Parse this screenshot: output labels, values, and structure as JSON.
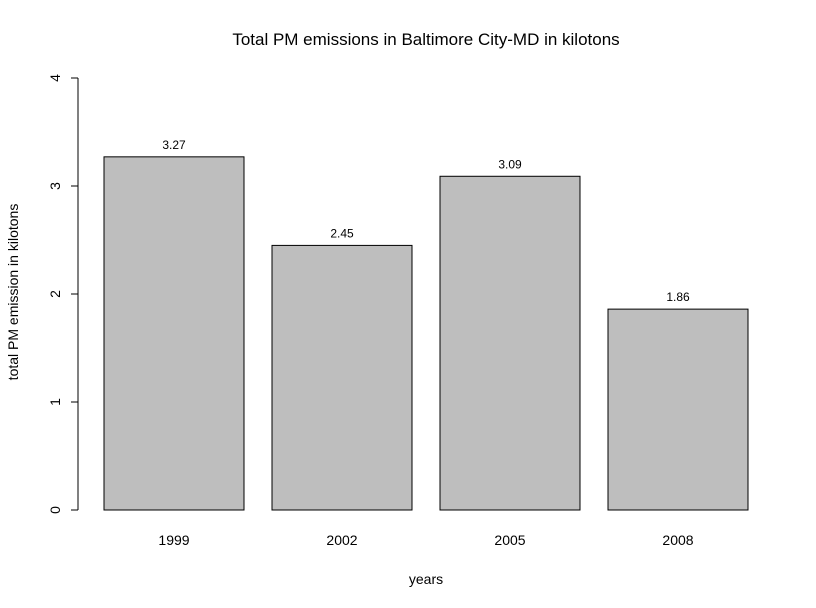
{
  "chart_data": {
    "type": "bar",
    "title": "Total PM  emissions in Baltimore City-MD in kilotons",
    "xlabel": "years",
    "ylabel": "total PM emission in kilotons",
    "categories": [
      "1999",
      "2002",
      "2005",
      "2008"
    ],
    "values": [
      3.27,
      2.45,
      3.09,
      1.86
    ],
    "data_labels": [
      "3.27",
      "2.45",
      "3.09",
      "1.86"
    ],
    "ylim": [
      0,
      4
    ],
    "yticks": [
      "0",
      "1",
      "2",
      "3",
      "4"
    ],
    "bar_color": "#bebebe",
    "grid": false,
    "legend": "none"
  }
}
